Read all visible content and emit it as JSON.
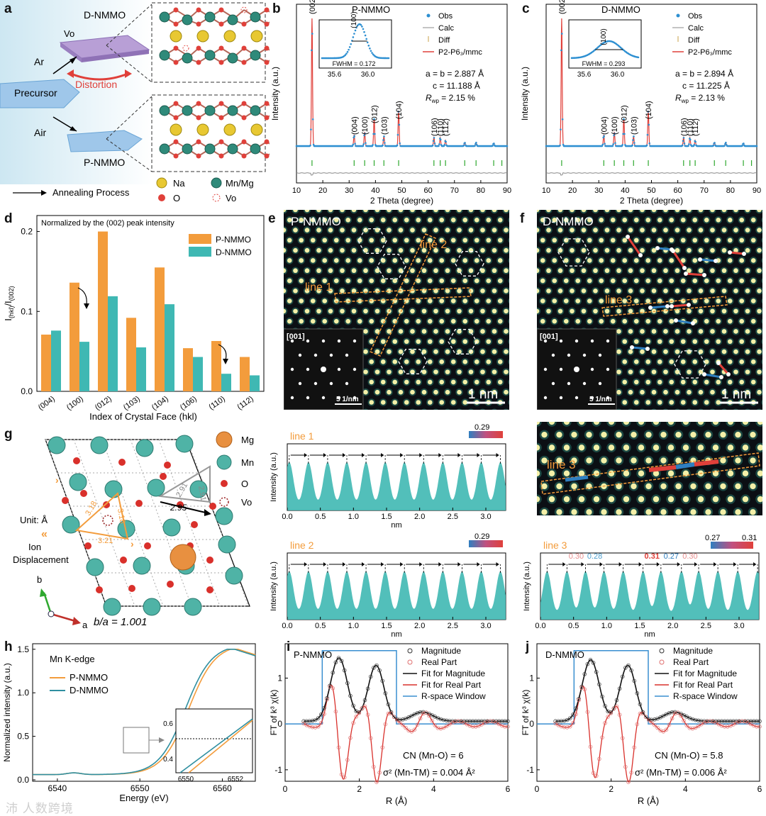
{
  "labels": {
    "a": "a",
    "b": "b",
    "c": "c",
    "d": "d",
    "e": "e",
    "f": "f",
    "g": "g",
    "h": "h",
    "i": "i",
    "j": "j"
  },
  "colors": {
    "orange": "#F39C3C",
    "teal": "#3FB8B3",
    "red": "#E0403A",
    "blue": "#2F7FC0",
    "black": "#111111",
    "gray": "#8a8a8a",
    "green": "#2ea82e",
    "obs": "#2d8fd1"
  },
  "panel_a": {
    "d_nmmo": "D-NMMO",
    "vo": "Vo",
    "ar": "Ar",
    "air": "Air",
    "distortion": "Distortion",
    "precursor": "Precursor",
    "p_nmmo": "P-NMMO",
    "annealing": "Annealing Process",
    "legend": {
      "na": "Na",
      "mnmg": "Mn/Mg",
      "o": "O",
      "vo": "Vo"
    }
  },
  "panel_b": {
    "title": "P-NMMO",
    "ylabel": "Intensity (a.u.)",
    "xlabel": "2 Theta (degree)",
    "xticks": [
      "10",
      "20",
      "30",
      "40",
      "50",
      "60",
      "70",
      "80",
      "90"
    ],
    "legend": [
      "Obs",
      "Calc",
      "Diff",
      "P2-P6₃/mmc"
    ],
    "inset_peak": "(100)",
    "inset_fwhm": "FWHM = 0.172",
    "inset_ticks": [
      "35.6",
      "36.0"
    ],
    "params": [
      "a = b = 2.887  Å",
      "c = 11.188  Å",
      "R",
      "wp",
      " = 2.15 %"
    ],
    "peaks": [
      "(002)",
      "(004)",
      "(100)",
      "(012)",
      "(103)",
      "(104)",
      "(106)",
      "(110)",
      "(112)"
    ]
  },
  "panel_c": {
    "title": "D-NMMO",
    "ylabel": "Intensity (a.u.)",
    "xlabel": "2 Theta (degree)",
    "xticks": [
      "10",
      "20",
      "30",
      "40",
      "50",
      "60",
      "70",
      "80",
      "90"
    ],
    "legend": [
      "Obs",
      "Calc",
      "Diff",
      "P2-P6₃/mmc"
    ],
    "inset_peak": "(100)",
    "inset_fwhm": "FWHM = 0.293",
    "inset_ticks": [
      "35.6",
      "36.0"
    ],
    "params": [
      "a = b = 2.894  Å",
      "c = 11.225  Å",
      "R",
      "wp",
      " = 2.13 %"
    ],
    "peaks": [
      "(002)",
      "(004)",
      "(100)",
      "(012)",
      "(103)",
      "(104)",
      "(106)",
      "(110)",
      "(112)"
    ]
  },
  "chart_data": {
    "type": "bar",
    "title": "Normalized by the (002) peak intensity",
    "xlabel": "Index of Crystal Face (hkl)",
    "ylabel": "I(hkl)/I(002)",
    "ylim": [
      0,
      0.22
    ],
    "yticks": [
      "0.0",
      "0.1",
      "0.2"
    ],
    "categories": [
      "(004)",
      "(100)",
      "(012)",
      "(103)",
      "(104)",
      "(106)",
      "(110)",
      "(112)"
    ],
    "series": [
      {
        "name": "P-NMMO",
        "values": [
          0.071,
          0.136,
          0.2,
          0.092,
          0.155,
          0.054,
          0.063,
          0.043
        ]
      },
      {
        "name": "D-NMMO",
        "values": [
          0.076,
          0.062,
          0.119,
          0.055,
          0.109,
          0.043,
          0.022,
          0.02
        ]
      }
    ]
  },
  "panel_e": {
    "title": "P-NMMO",
    "line1": "line 1",
    "line2": "line 2",
    "zone": "[001]",
    "fft_scale": "5 1/nm",
    "scale": "1 nm"
  },
  "panel_f": {
    "title": "D-NMMO",
    "line3": "line 3",
    "zone": "[001]",
    "fft_scale": "5 1/nm",
    "scale": "1 nm"
  },
  "panel_g": {
    "legend": {
      "mg": "Mg",
      "mn": "Mn",
      "o": "O",
      "vo": "Vo"
    },
    "unit": "Unit: Å",
    "ion1": "Ion",
    "ion2": "Displacement",
    "b": "b",
    "a": "a",
    "ratio": "b/a = 1.001",
    "d1": "3.18",
    "d2": "3.18",
    "d3": "3.21",
    "g1": "2.91",
    "g2": "2.91",
    "g3": "2.95"
  },
  "profile_line1": {
    "title": "line 1",
    "scale": "0.29",
    "xlabel": "nm",
    "ylabel": "Intensity (a.u.)",
    "xticks": [
      "0.0",
      "0.5",
      "1.0",
      "1.5",
      "2.0",
      "2.5",
      "3.0"
    ]
  },
  "profile_line2": {
    "title": "line 2",
    "scale": "0.29",
    "xlabel": "nm",
    "ylabel": "Intensity (a.u.)",
    "xticks": [
      "0.0",
      "0.5",
      "1.0",
      "1.5",
      "2.0",
      "2.5",
      "3.0"
    ]
  },
  "zoom_f": {
    "title": "line 3"
  },
  "profile_line3": {
    "title": "line 3",
    "scale_lo": "0.27",
    "scale_hi": "0.31",
    "xlabel": "nm",
    "ylabel": "Intensity (a.u.)",
    "xticks": [
      "0.0",
      "0.5",
      "1.0",
      "1.5",
      "2.0",
      "2.5",
      "3.0"
    ],
    "d": [
      "0.30",
      "0.28",
      "0.31",
      "0.27",
      "0.30"
    ]
  },
  "panel_h": {
    "edge": "Mn K-edge",
    "p": "P-NMMO",
    "d": "D-NMMO",
    "xlabel": "Energy (eV)",
    "ylabel": "Normalized intensity (a.u.)",
    "xticks": [
      "6540",
      "6550",
      "6560"
    ],
    "yticks": [
      "0.0",
      "0.5",
      "1.0",
      "1.5"
    ],
    "inset_x": [
      "6550",
      "6552"
    ],
    "inset_y": [
      "0.4",
      "0.6"
    ]
  },
  "panel_i": {
    "title": "P-NMMO",
    "legend": [
      "Magnitude",
      "Real Part",
      "Fit for Magnitude",
      "Fit for Real Part",
      "R-space Window"
    ],
    "xlabel": "R (Å)",
    "ylabel": "FT of k³ χ(k)",
    "xticks": [
      "0",
      "2",
      "4",
      "6"
    ],
    "yticks": [
      "-1",
      "0",
      "1"
    ],
    "cn": "CN (Mn-O) = 6",
    "sigma": "σ² (Mn-TM) = 0.004 Å²"
  },
  "panel_j": {
    "title": "D-NMMO",
    "legend": [
      "Magnitude",
      "Real Part",
      "Fit for Magnitude",
      "Fit for Real Part",
      "R-space Window"
    ],
    "xlabel": "R (Å)",
    "ylabel": "FT of k³ χ(k)",
    "xticks": [
      "0",
      "2",
      "4",
      "6"
    ],
    "yticks": [
      "-1",
      "0",
      "1"
    ],
    "cn": "CN (Mn-O) = 5.8",
    "sigma": "σ² (Mn-TM) = 0.006 Å²"
  },
  "watermark": "沛 人数跨境"
}
